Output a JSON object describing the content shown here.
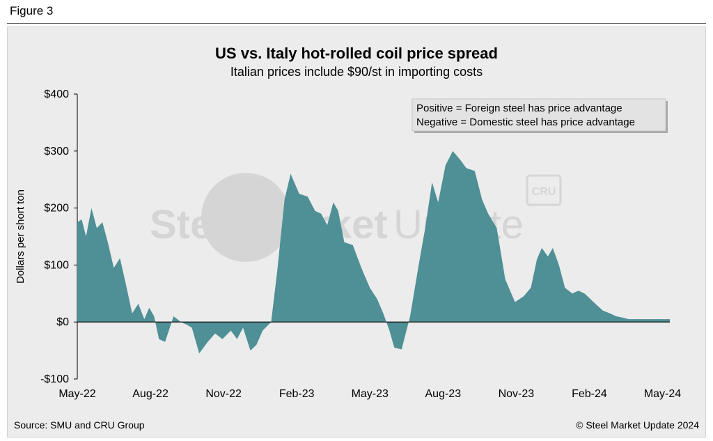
{
  "figure_label": "Figure 3",
  "source": "Source: SMU and CRU Group",
  "copyright": "© Steel Market Update 2024",
  "watermark": {
    "text_bold": "Steel Market",
    "text_light": "Update",
    "badge": "CRU"
  },
  "colors": {
    "area": "#4f8f96",
    "zero_line": "#000000",
    "panel": "#ececec"
  },
  "chart_data": {
    "type": "area",
    "title": "US vs. Italy hot-rolled coil price spread",
    "subtitle": "Italian prices include $90/st in importing costs",
    "xlabel": "",
    "ylabel": "Dollars per short ton",
    "ylim": [
      -100,
      400
    ],
    "yticks": [
      {
        "value": 400,
        "label": "$400"
      },
      {
        "value": 300,
        "label": "$300"
      },
      {
        "value": 200,
        "label": "$200"
      },
      {
        "value": 100,
        "label": "$100"
      },
      {
        "value": 0,
        "label": "$0"
      },
      {
        "value": -100,
        "label": "-$100"
      }
    ],
    "xlim": [
      0,
      24.3
    ],
    "xticks": [
      {
        "value": 0,
        "label": "May-22"
      },
      {
        "value": 3,
        "label": "Aug-22"
      },
      {
        "value": 6,
        "label": "Nov-22"
      },
      {
        "value": 9,
        "label": "Feb-23"
      },
      {
        "value": 12,
        "label": "May-23"
      },
      {
        "value": 15,
        "label": "Aug-23"
      },
      {
        "value": 18,
        "label": "Nov-23"
      },
      {
        "value": 21,
        "label": "Feb-24"
      },
      {
        "value": 24,
        "label": "May-24"
      }
    ],
    "legend": [
      "Positive = Foreign steel has price advantage",
      "Negative = Domestic steel has price advantage"
    ],
    "legend_position": "top-right",
    "x": [
      0,
      0.18,
      0.36,
      0.58,
      0.8,
      1.03,
      1.25,
      1.5,
      1.75,
      2.0,
      2.25,
      2.5,
      2.75,
      2.95,
      3.15,
      3.35,
      3.6,
      3.95,
      4.25,
      4.5,
      4.7,
      5.0,
      5.35,
      5.65,
      5.95,
      6.3,
      6.55,
      6.8,
      7.1,
      7.35,
      7.6,
      7.95,
      8.2,
      8.5,
      8.75,
      9.1,
      9.45,
      9.75,
      10.0,
      10.25,
      10.5,
      10.7,
      10.95,
      11.3,
      11.65,
      12.0,
      12.3,
      12.55,
      12.8,
      13.0,
      13.3,
      13.65,
      14.0,
      14.25,
      14.55,
      14.8,
      15.1,
      15.4,
      15.7,
      15.95,
      16.3,
      16.6,
      16.85,
      17.2,
      17.55,
      17.95,
      18.3,
      18.6,
      18.85,
      19.05,
      19.3,
      19.5,
      19.75,
      20.0,
      20.3,
      20.55,
      20.8,
      21.05,
      21.3,
      21.55,
      21.85,
      22.1,
      22.35,
      22.6,
      22.85,
      23.1,
      23.35,
      23.65,
      23.95,
      24.2,
      24.3
    ],
    "values": [
      175,
      180,
      150,
      200,
      165,
      175,
      140,
      95,
      112,
      65,
      15,
      32,
      5,
      25,
      10,
      -30,
      -35,
      10,
      0,
      -5,
      -10,
      -55,
      -35,
      -20,
      -30,
      -15,
      -30,
      -10,
      -50,
      -40,
      -15,
      0,
      90,
      215,
      260,
      225,
      220,
      195,
      190,
      170,
      210,
      195,
      140,
      135,
      95,
      60,
      40,
      15,
      -15,
      -45,
      -48,
      10,
      100,
      160,
      245,
      210,
      275,
      300,
      285,
      270,
      265,
      215,
      190,
      165,
      75,
      35,
      45,
      60,
      110,
      130,
      115,
      130,
      100,
      60,
      50,
      55,
      50,
      40,
      30,
      20,
      15,
      10,
      8,
      5,
      5,
      5,
      5,
      5,
      5,
      5,
      5
    ]
  }
}
